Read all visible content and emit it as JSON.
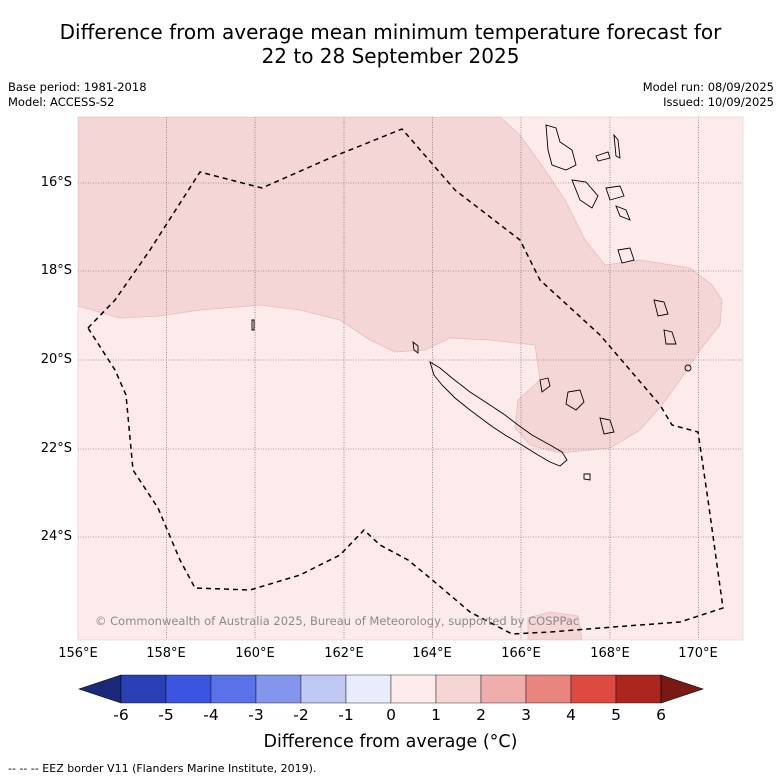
{
  "title_line1": "Difference from average mean minimum temperature forecast for",
  "title_line2": "22 to 28 September 2025",
  "meta": {
    "base_period": "Base period: 1981-2018",
    "model": "Model: ACCESS-S2",
    "model_run": "Model run: 08/09/2025",
    "issued": "Issued: 10/09/2025"
  },
  "axes": {
    "lon_labels": [
      "156°E",
      "158°E",
      "160°E",
      "162°E",
      "164°E",
      "166°E",
      "168°E",
      "170°E"
    ],
    "lat_labels": [
      "16°S",
      "18°S",
      "20°S",
      "22°S",
      "24°S"
    ]
  },
  "copyright": "© Commonwealth of Australia 2025, Bureau of Meteorology, supported by COSPPac",
  "colorbar": {
    "title": "Difference from average (°C)",
    "ticks": [
      "-6",
      "-5",
      "-4",
      "-3",
      "-2",
      "-1",
      "0",
      "1",
      "2",
      "3",
      "4",
      "5",
      "6"
    ],
    "colors": [
      "#1b2a78",
      "#2b3fb4",
      "#3b55e0",
      "#5a72e8",
      "#8496ec",
      "#c0c8f4",
      "#e8ecfb",
      "#fdeceb",
      "#f6d6d5",
      "#efaeab",
      "#e8857f",
      "#dd4a40",
      "#ac2620",
      "#7a1812"
    ]
  },
  "footnote": "-- -- -- EEZ border V11 (Flanders Marine Institute, 2019).",
  "legend_colors": {
    "anomaly_0_1": "#fcebea",
    "anomaly_1_2": "#f5d6d6"
  }
}
